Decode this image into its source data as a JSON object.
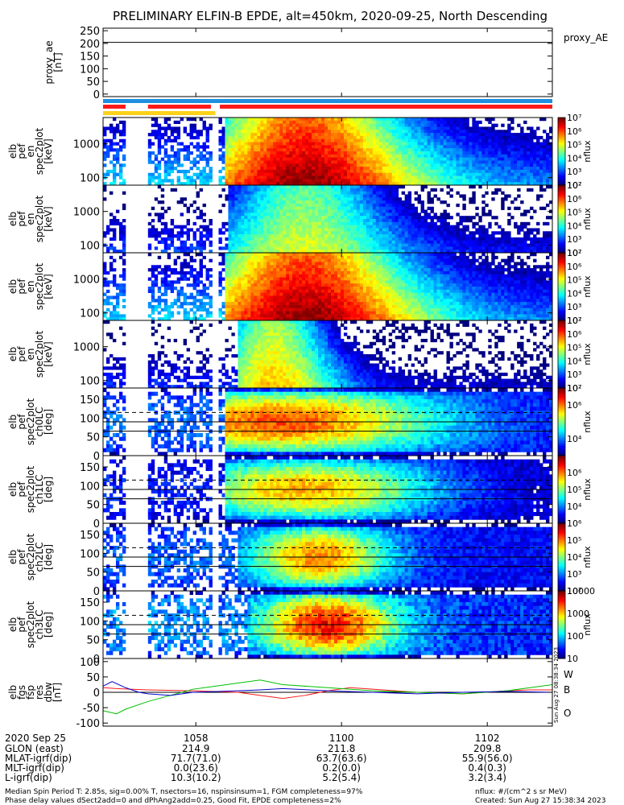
{
  "title": "PRELIMINARY ELFIN-B EPDE, alt=450km, 2020-09-25, North Descending",
  "colors": {
    "red": "#ff1a1a",
    "blue": "#1e8fe0",
    "yellow": "#ffd21a",
    "green": "#00c000",
    "navy": "#0000cc"
  },
  "chart_data": [
    {
      "id": "proxy_ae",
      "type": "line",
      "ylabel": [
        "proxy_ae",
        "[nT]"
      ],
      "ylim": [
        -10,
        260
      ],
      "yticks": [
        0,
        50,
        100,
        150,
        200,
        250
      ],
      "legend": "proxy_AE",
      "series": [
        {
          "name": "proxy_AE",
          "x": [
            0,
            0.1,
            1
          ],
          "y": [
            204,
            204,
            204
          ]
        }
      ]
    },
    {
      "id": "orbit-bars",
      "type": "bar",
      "bars": [
        {
          "color": "blue",
          "segments": [
            [
              0.0,
              1.0
            ]
          ]
        },
        {
          "color": "red",
          "segments": [
            [
              0.0,
              0.05
            ],
            [
              0.1,
              0.24
            ],
            [
              0.26,
              1.0
            ]
          ]
        },
        {
          "color": "yellow",
          "segments": [
            [
              0.0,
              0.25
            ]
          ]
        }
      ]
    },
    {
      "id": "pef-spectra-1",
      "type": "heatmap",
      "ylabel": [
        "elb",
        "pef",
        "en",
        "spec2plot",
        "[keV]"
      ],
      "yscale": "log",
      "ylim": [
        60,
        6000
      ],
      "yticks": [
        100,
        1000
      ],
      "colorbar": {
        "label": "nflux",
        "scale": "log",
        "range": [
          100,
          10000000
        ],
        "ticks": [
          100,
          1000,
          10000,
          100000,
          1000000,
          10000000
        ]
      },
      "pattern": "energy",
      "gaps": [
        [
          0.05,
          0.1
        ],
        [
          0.24,
          0.26
        ]
      ],
      "profile": {
        "peak": 0.45,
        "width": 0.28,
        "max": 7.0,
        "bg": 3.2,
        "edge_low": 0.27
      }
    },
    {
      "id": "pef-spectra-2",
      "type": "heatmap",
      "ylabel": [
        "elb",
        "pef",
        "en",
        "spec2plot",
        "[keV]"
      ],
      "yscale": "log",
      "ylim": [
        60,
        6000
      ],
      "yticks": [
        100,
        1000
      ],
      "colorbar": {
        "label": "nflux",
        "scale": "log",
        "range": [
          100,
          10000000
        ],
        "ticks": [
          100,
          1000,
          10000,
          100000,
          1000000,
          10000000
        ]
      },
      "pattern": "energy",
      "gaps": [
        [
          0.05,
          0.1
        ],
        [
          0.24,
          0.26
        ]
      ],
      "profile": {
        "peak": 0.45,
        "width": 0.22,
        "max": 5.0,
        "bg": 2.6,
        "edge_low": 0.28
      }
    },
    {
      "id": "pef-spectra-3",
      "type": "heatmap",
      "ylabel": [
        "elb",
        "pef",
        "en",
        "spec2plot",
        "[keV]"
      ],
      "yscale": "log",
      "ylim": [
        60,
        6000
      ],
      "yticks": [
        100,
        1000
      ],
      "colorbar": {
        "label": "nflux",
        "scale": "log",
        "range": [
          100,
          10000000
        ],
        "ticks": [
          100,
          1000,
          10000,
          100000,
          1000000,
          10000000
        ]
      },
      "pattern": "energy",
      "gaps": [
        [
          0.05,
          0.1
        ],
        [
          0.24,
          0.26
        ]
      ],
      "profile": {
        "peak": 0.45,
        "width": 0.28,
        "max": 7.0,
        "bg": 3.2,
        "edge_low": 0.27
      }
    },
    {
      "id": "pef-spectra-4",
      "type": "heatmap",
      "ylabel": [
        "elb",
        "pef",
        "en",
        "spec2plot",
        "[keV]"
      ],
      "yscale": "log",
      "ylim": [
        60,
        6000
      ],
      "yticks": [
        100,
        1000
      ],
      "colorbar": {
        "label": "nflux",
        "scale": "log",
        "range": [
          100,
          10000000
        ],
        "ticks": [
          100,
          1000,
          10000,
          100000,
          1000000,
          10000000
        ]
      },
      "pattern": "energy",
      "gaps": [
        [
          0.05,
          0.1
        ],
        [
          0.24,
          0.26
        ]
      ],
      "profile": {
        "peak": 0.38,
        "width": 0.16,
        "max": 5.5,
        "bg": 2.4,
        "edge_low": 0.3
      }
    },
    {
      "id": "pa-ch0LC",
      "type": "heatmap",
      "ylabel": [
        "elb",
        "pef",
        "spec2plot",
        "ch0LC",
        "[deg]"
      ],
      "ylim": [
        0,
        180
      ],
      "yticks": [
        0,
        50,
        100,
        150
      ],
      "colorbar": {
        "label": "nflux",
        "scale": "log",
        "range": [
          1000,
          10000000
        ],
        "ticks": [
          10000,
          1000000,
          10000000
        ]
      },
      "pattern": "pitch",
      "lines": [
        65,
        90,
        115
      ],
      "dashed": [
        115
      ],
      "gaps": [
        [
          0.05,
          0.1
        ],
        [
          0.24,
          0.26
        ]
      ],
      "profile": {
        "peak": 0.4,
        "width": 0.35,
        "max": 6.2,
        "bg": 3.5,
        "edge_low": 0.27
      }
    },
    {
      "id": "pa-ch1LC",
      "type": "heatmap",
      "ylabel": [
        "elb",
        "pef",
        "spec2plot",
        "ch1LC",
        "[deg]"
      ],
      "ylim": [
        0,
        180
      ],
      "yticks": [
        0,
        50,
        100,
        150
      ],
      "colorbar": {
        "label": "nflux",
        "scale": "log",
        "range": [
          1000,
          10000000
        ],
        "ticks": [
          10000,
          100000,
          1000000
        ]
      },
      "pattern": "pitch",
      "lines": [
        65,
        90,
        115
      ],
      "dashed": [
        115
      ],
      "gaps": [
        [
          0.05,
          0.1
        ],
        [
          0.24,
          0.26
        ]
      ],
      "profile": {
        "peak": 0.45,
        "width": 0.3,
        "max": 5.8,
        "bg": 3.2,
        "edge_low": 0.27
      }
    },
    {
      "id": "pa-ch2LC",
      "type": "heatmap",
      "ylabel": [
        "elb",
        "pef",
        "spec2plot",
        "ch2LC",
        "[deg]"
      ],
      "ylim": [
        0,
        180
      ],
      "yticks": [
        0,
        50,
        100,
        150
      ],
      "colorbar": {
        "label": "nflux",
        "scale": "log",
        "range": [
          100,
          1000000
        ],
        "ticks": [
          100,
          1000,
          10000,
          100000,
          1000000
        ]
      },
      "pattern": "pitch",
      "lines": [
        65,
        90,
        115
      ],
      "dashed": [
        115
      ],
      "gaps": [
        [
          0.05,
          0.1
        ],
        [
          0.24,
          0.26
        ]
      ],
      "profile": {
        "peak": 0.48,
        "width": 0.16,
        "max": 5.0,
        "bg": 2.5,
        "edge_low": 0.3
      }
    },
    {
      "id": "pa-ch3LC",
      "type": "heatmap",
      "ylabel": [
        "elb",
        "pef",
        "spec2plot",
        "ch3LC",
        "[deg]"
      ],
      "ylim": [
        0,
        180
      ],
      "yticks": [
        0,
        50,
        100,
        150
      ],
      "colorbar": {
        "label": "nflux",
        "scale": "log",
        "range": [
          10,
          10000
        ],
        "ticks": [
          10,
          100,
          1000,
          10000
        ],
        "ticklabels": [
          "10",
          "100",
          "1000",
          "10000"
        ]
      },
      "pattern": "pitch",
      "lines": [
        65,
        90,
        115
      ],
      "dashed": [
        115
      ],
      "gaps": [
        [
          0.05,
          0.1
        ],
        [
          0.24,
          0.26
        ]
      ],
      "profile": {
        "peak": 0.5,
        "width": 0.16,
        "max": 3.6,
        "bg": 1.5,
        "edge_low": 0.32
      }
    },
    {
      "id": "dbw",
      "type": "line",
      "ylabel": [
        "elb",
        "fgs",
        "fsp",
        "res",
        "dbw",
        "[nT]"
      ],
      "ylim": [
        -110,
        110
      ],
      "yticks": [
        -100,
        -50,
        0,
        50,
        100
      ],
      "legend_letters": [
        "W",
        "B",
        "O"
      ],
      "side_text": "Sun Aug 27 08:38:34 2023",
      "series": [
        {
          "name": "W",
          "color": "red",
          "x": [
            0,
            0.03,
            0.06,
            0.1,
            0.2,
            0.3,
            0.35,
            0.4,
            0.45,
            0.5,
            0.55,
            0.6,
            0.7,
            0.8,
            0.85,
            0.9,
            0.95,
            1.0
          ],
          "y": [
            15,
            12,
            10,
            8,
            5,
            0,
            -10,
            -20,
            -10,
            5,
            15,
            10,
            0,
            -5,
            0,
            5,
            8,
            8
          ]
        },
        {
          "name": "B",
          "color": "green",
          "x": [
            0,
            0.03,
            0.05,
            0.1,
            0.15,
            0.2,
            0.25,
            0.3,
            0.35,
            0.4,
            0.5,
            0.6,
            0.7,
            0.8,
            0.85,
            0.9,
            0.95,
            1.0
          ],
          "y": [
            -60,
            -70,
            -55,
            -30,
            -10,
            10,
            20,
            30,
            40,
            25,
            15,
            5,
            0,
            -5,
            0,
            5,
            15,
            25
          ]
        },
        {
          "name": "O",
          "color": "navy",
          "x": [
            0,
            0.02,
            0.05,
            0.08,
            0.1,
            0.15,
            0.2,
            0.3,
            0.35,
            0.4,
            0.5,
            0.6,
            0.7,
            0.8,
            0.9,
            1.0
          ],
          "y": [
            20,
            35,
            15,
            0,
            -5,
            -10,
            0,
            5,
            8,
            12,
            5,
            0,
            -5,
            0,
            3,
            0
          ]
        }
      ]
    }
  ],
  "x_axis": {
    "ticks": [
      {
        "pos": 0.2065,
        "label": "1058"
      },
      {
        "pos": 0.5308,
        "label": "1100"
      },
      {
        "pos": 0.8552,
        "label": "1102"
      }
    ],
    "row_labels": [
      "2020 Sep 25",
      "GLON (east)",
      "MLAT-igrf(dip)",
      "MLT-igrf(dip)",
      "L-igrf(dip)"
    ],
    "rows": [
      [
        "214.9",
        "211.8",
        "209.8"
      ],
      [
        "71.7(71.0)",
        "63.7(63.6)",
        "55.9(56.0)"
      ],
      [
        "0.0(23.6)",
        "0.2(0.0)",
        "0.4(0.3)"
      ],
      [
        "10.3(10.2)",
        "5.2(5.4)",
        "3.2(3.4)"
      ]
    ]
  },
  "footer": {
    "line1": "Median Spin Period T: 2.85s, sig=0.00% T, nsectors=16, nspinsinsum=1, FGM completeness=97%",
    "line2": "Phase delay values dSect2add=0 and dPhAng2add=0.25, Good Fit, EPDE completeness=2%",
    "units": "nflux: #/(cm^2 s sr MeV)",
    "created": "Created: Sun Aug 27 15:38:34 2023"
  }
}
